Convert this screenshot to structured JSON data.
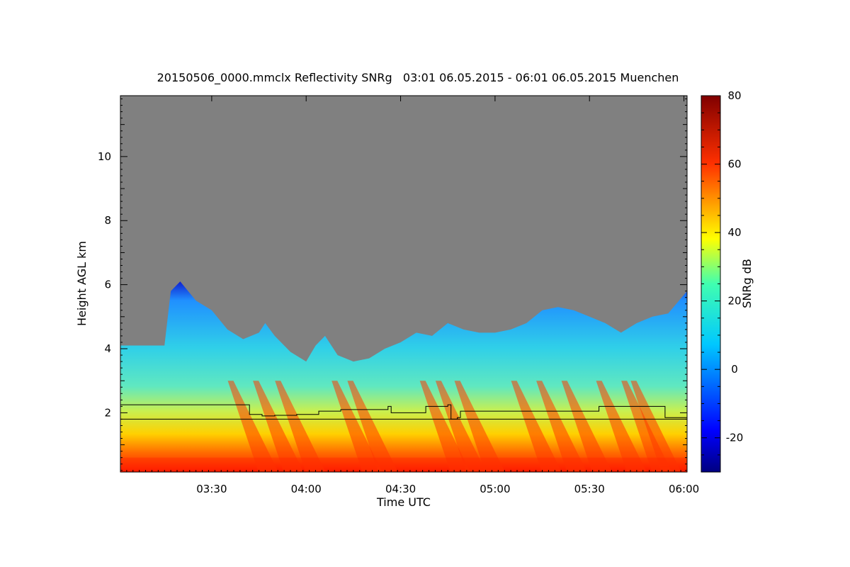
{
  "chart_data": {
    "type": "heatmap",
    "title": "20150506_0000.mmclx Reflectivity SNRg   03:01 06.05.2015 - 06:01 06.05.2015 Muenchen",
    "xlabel": "Time UTC",
    "ylabel": "Height AGL km",
    "xlim": [
      "03:01",
      "06:01"
    ],
    "ylim": [
      0.15,
      11.9
    ],
    "x_ticks": [
      "03:30",
      "04:00",
      "04:30",
      "05:00",
      "05:30",
      "06:00"
    ],
    "y_ticks": [
      2,
      4,
      6,
      8,
      10
    ],
    "no_data_color": "#808080",
    "colorbar": {
      "label": "SNRg dB",
      "range": [
        -30,
        80
      ],
      "ticks": [
        -20,
        0,
        20,
        40,
        60,
        80
      ],
      "colormap": "jet"
    },
    "echo_top_km": [
      [
        "03:01",
        4.1
      ],
      [
        "03:10",
        4.1
      ],
      [
        "03:15",
        4.1
      ],
      [
        "03:17",
        5.8
      ],
      [
        "03:20",
        6.1
      ],
      [
        "03:25",
        5.5
      ],
      [
        "03:30",
        5.2
      ],
      [
        "03:35",
        4.6
      ],
      [
        "03:40",
        4.3
      ],
      [
        "03:45",
        4.5
      ],
      [
        "03:47",
        4.8
      ],
      [
        "03:50",
        4.4
      ],
      [
        "03:55",
        3.9
      ],
      [
        "04:00",
        3.6
      ],
      [
        "04:03",
        4.1
      ],
      [
        "04:06",
        4.4
      ],
      [
        "04:10",
        3.8
      ],
      [
        "04:15",
        3.6
      ],
      [
        "04:20",
        3.7
      ],
      [
        "04:25",
        4.0
      ],
      [
        "04:30",
        4.2
      ],
      [
        "04:35",
        4.5
      ],
      [
        "04:40",
        4.4
      ],
      [
        "04:45",
        4.8
      ],
      [
        "04:50",
        4.6
      ],
      [
        "04:55",
        4.5
      ],
      [
        "05:00",
        4.5
      ],
      [
        "05:05",
        4.6
      ],
      [
        "05:10",
        4.8
      ],
      [
        "05:15",
        5.2
      ],
      [
        "05:20",
        5.3
      ],
      [
        "05:25",
        5.2
      ],
      [
        "05:30",
        5.0
      ],
      [
        "05:35",
        4.8
      ],
      [
        "05:40",
        4.5
      ],
      [
        "05:45",
        4.8
      ],
      [
        "05:50",
        5.0
      ],
      [
        "05:55",
        5.1
      ],
      [
        "06:01",
        5.8
      ]
    ],
    "series": [
      {
        "points": [
          [
            "03:01",
            2.25
          ],
          [
            "03:38",
            2.25
          ],
          [
            "03:42",
            1.95
          ],
          [
            "03:46",
            1.9
          ],
          [
            "03:50",
            1.92
          ],
          [
            "03:57",
            1.95
          ],
          [
            "04:03",
            1.95
          ],
          [
            "04:04",
            2.05
          ],
          [
            "04:10",
            2.05
          ],
          [
            "04:11",
            2.1
          ],
          [
            "04:25",
            2.1
          ],
          [
            "04:26",
            2.2
          ],
          [
            "04:27",
            2.0
          ],
          [
            "04:35",
            2.0
          ],
          [
            "04:38",
            2.2
          ],
          [
            "04:45",
            2.25
          ],
          [
            "04:46",
            1.8
          ],
          [
            "04:48",
            1.85
          ],
          [
            "04:49",
            2.05
          ],
          [
            "05:32",
            2.05
          ],
          [
            "05:33",
            2.2
          ],
          [
            "05:53",
            2.2
          ],
          [
            "05:54",
            1.85
          ],
          [
            "06:01",
            1.88
          ]
        ]
      },
      {
        "points": [
          [
            "03:01",
            1.8
          ],
          [
            "06:01",
            1.8
          ]
        ]
      }
    ]
  }
}
